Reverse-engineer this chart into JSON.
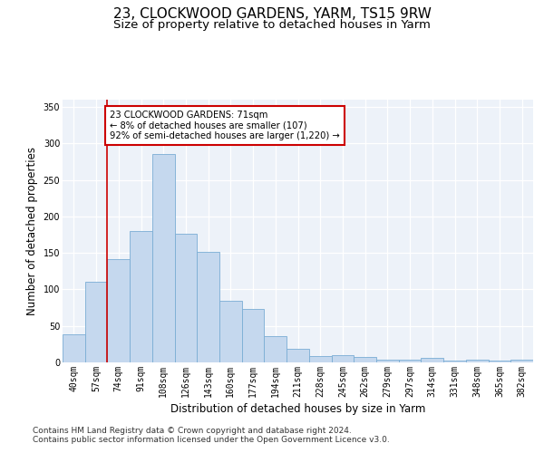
{
  "title": "23, CLOCKWOOD GARDENS, YARM, TS15 9RW",
  "subtitle": "Size of property relative to detached houses in Yarm",
  "xlabel": "Distribution of detached houses by size in Yarm",
  "ylabel": "Number of detached properties",
  "bar_labels": [
    "40sqm",
    "57sqm",
    "74sqm",
    "91sqm",
    "108sqm",
    "126sqm",
    "143sqm",
    "160sqm",
    "177sqm",
    "194sqm",
    "211sqm",
    "228sqm",
    "245sqm",
    "262sqm",
    "279sqm",
    "297sqm",
    "314sqm",
    "331sqm",
    "348sqm",
    "365sqm",
    "382sqm"
  ],
  "bar_values": [
    38,
    110,
    142,
    180,
    285,
    176,
    152,
    85,
    73,
    36,
    19,
    9,
    10,
    8,
    4,
    4,
    6,
    3,
    4,
    2,
    4
  ],
  "bar_color": "#c5d8ee",
  "bar_edge_color": "#7aadd4",
  "vline_color": "#cc0000",
  "vline_x": 1.5,
  "annotation_text": "23 CLOCKWOOD GARDENS: 71sqm\n← 8% of detached houses are smaller (107)\n92% of semi-detached houses are larger (1,220) →",
  "annotation_edge_color": "#cc0000",
  "ylim_max": 360,
  "yticks": [
    0,
    50,
    100,
    150,
    200,
    250,
    300,
    350
  ],
  "footer_line1": "Contains HM Land Registry data © Crown copyright and database right 2024.",
  "footer_line2": "Contains public sector information licensed under the Open Government Licence v3.0.",
  "bg_color": "#edf2f9",
  "title_fontsize": 11,
  "subtitle_fontsize": 9.5,
  "xlabel_fontsize": 8.5,
  "ylabel_fontsize": 8.5,
  "tick_fontsize": 7,
  "footer_fontsize": 6.5
}
